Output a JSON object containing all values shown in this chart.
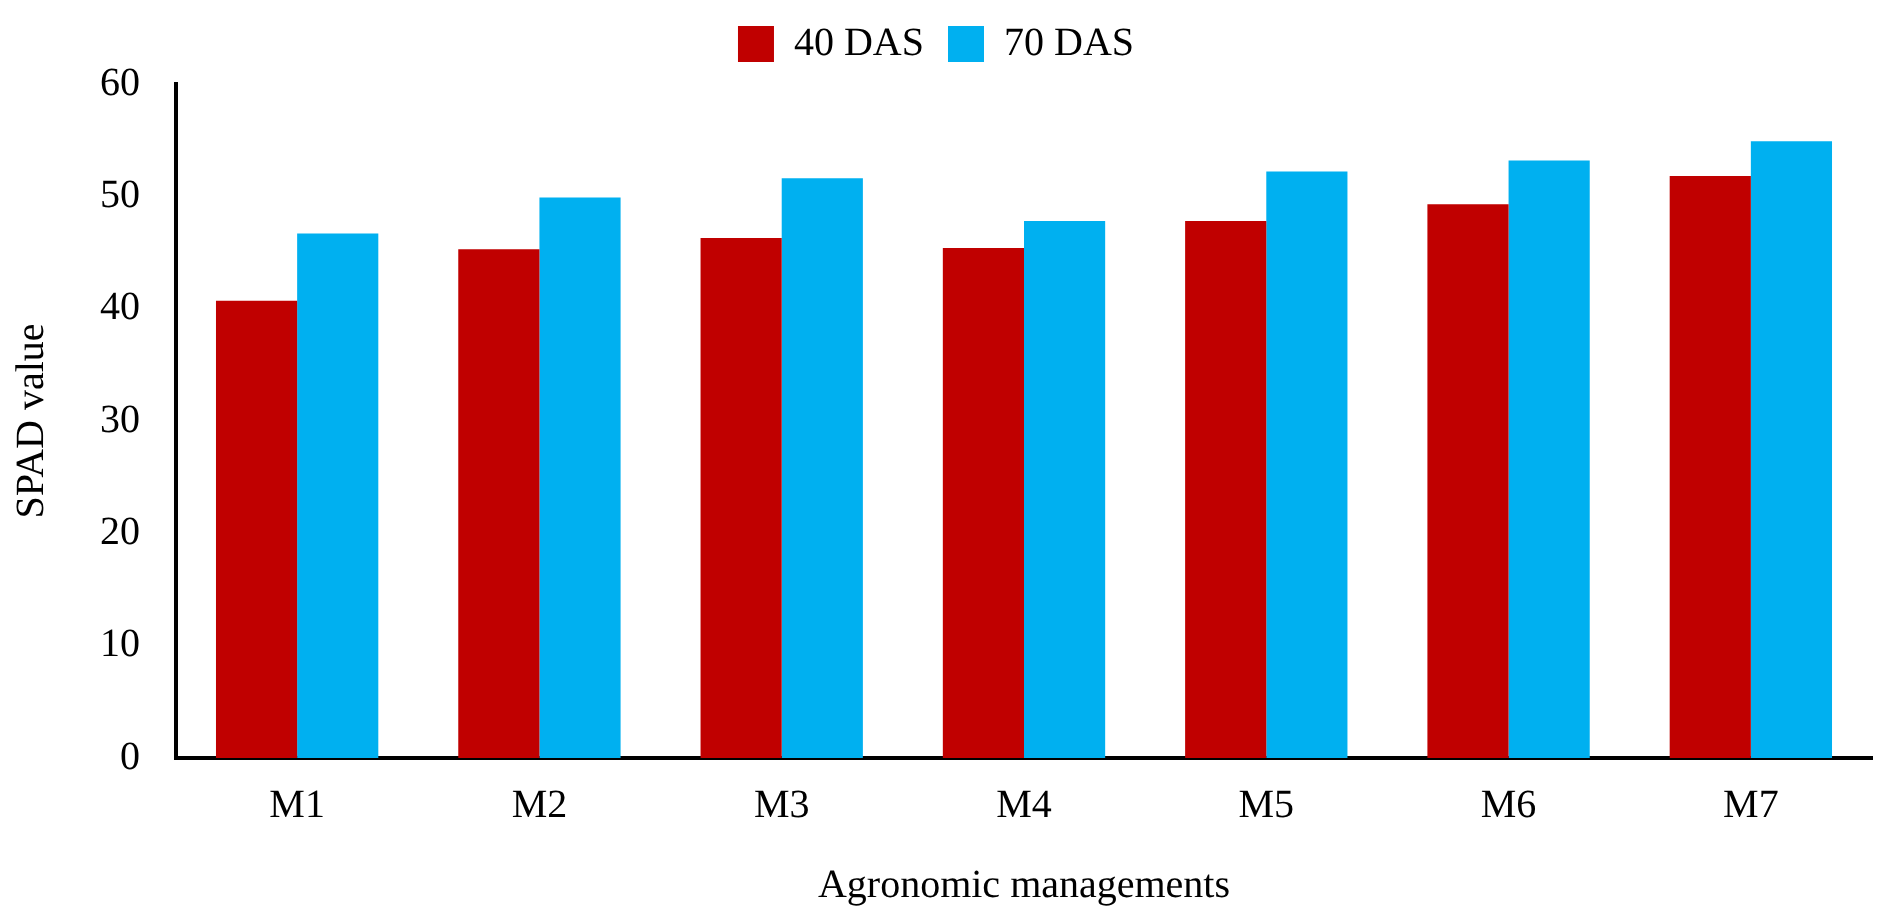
{
  "chart_data": {
    "type": "bar",
    "xlabel": "Agronomic managements",
    "ylabel": "SPAD value",
    "categories": [
      "M1",
      "M2",
      "M3",
      "M4",
      "M5",
      "M6",
      "M7"
    ],
    "series": [
      {
        "name": "40 DAS",
        "color": "#c00000",
        "values": [
          40.7,
          45.3,
          46.3,
          45.4,
          47.8,
          49.3,
          51.8
        ]
      },
      {
        "name": "70 DAS",
        "color": "#00b0f0",
        "values": [
          46.7,
          49.9,
          51.6,
          47.8,
          52.2,
          53.2,
          54.9
        ]
      }
    ],
    "ylim": [
      0,
      60
    ],
    "yticks": [
      0,
      10,
      20,
      30,
      40,
      50,
      60
    ],
    "grid": false,
    "legend": "top"
  }
}
